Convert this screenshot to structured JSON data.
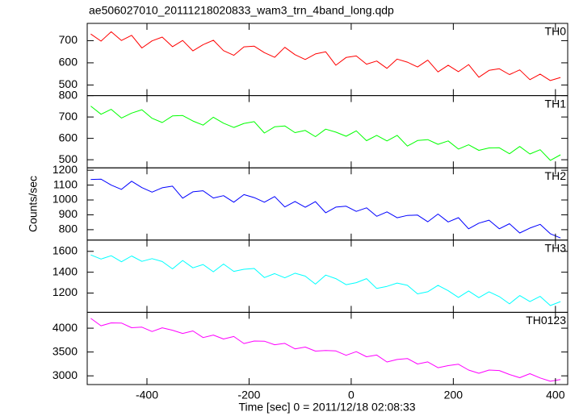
{
  "chart_data": {
    "type": "line",
    "title": "ae506027010_20111218020833_wam3_trn_4band_long.qdp",
    "x_label": "Time [sec] 0 = 2011/12/18 02:08:33",
    "y_label": "Counts/sec",
    "x": [
      -510,
      -490,
      -470,
      -450,
      -430,
      -410,
      -390,
      -370,
      -350,
      -330,
      -310,
      -290,
      -270,
      -250,
      -230,
      -210,
      -190,
      -170,
      -150,
      -130,
      -110,
      -90,
      -70,
      -50,
      -30,
      -10,
      10,
      30,
      50,
      70,
      90,
      110,
      130,
      150,
      170,
      190,
      210,
      230,
      250,
      270,
      290,
      310,
      330,
      350,
      370,
      390,
      410
    ],
    "xlim": [
      -517,
      424
    ],
    "xticks": [
      -400,
      -200,
      0,
      200,
      400
    ],
    "series": [
      {
        "name": "TH0",
        "color": "#ff0000",
        "ylim": [
          452,
          778
        ],
        "yticks": [
          500,
          600,
          700
        ],
        "values": [
          730,
          698,
          740,
          701,
          724,
          667,
          699,
          716,
          673,
          701,
          654,
          682,
          702,
          655,
          634,
          672,
          675,
          646,
          625,
          670,
          637,
          615,
          640,
          650,
          589,
          624,
          631,
          594,
          608,
          575,
          617,
          603,
          581,
          612,
          559,
          589,
          560,
          592,
          535,
          566,
          573,
          547,
          568,
          524,
          549,
          520,
          534
        ]
      },
      {
        "name": "TH1",
        "color": "#00ff00",
        "ylim": [
          462,
          800
        ],
        "yticks": [
          500,
          600,
          700,
          800
        ],
        "values": [
          751,
          713,
          736,
          695,
          718,
          734,
          694,
          674,
          705,
          707,
          681,
          662,
          699,
          671,
          651,
          670,
          678,
          625,
          654,
          658,
          627,
          637,
          608,
          643,
          629,
          610,
          635,
          589,
          614,
          588,
          614,
          564,
          590,
          594,
          572,
          588,
          550,
          570,
          544,
          555,
          556,
          528,
          562,
          527,
          547,
          497,
          523
        ]
      },
      {
        "name": "TH2",
        "color": "#0000ff",
        "ylim": [
          730,
          1216
        ],
        "yticks": [
          800,
          900,
          1000,
          1100,
          1200
        ],
        "values": [
          1138,
          1140,
          1100,
          1071,
          1126,
          1083,
          1053,
          1082,
          1093,
          1012,
          1055,
          1062,
          1013,
          1029,
          985,
          1036,
          1016,
          985,
          1023,
          953,
          990,
          951,
          989,
          914,
          952,
          958,
          923,
          947,
          890,
          920,
          880,
          896,
          898,
          853,
          905,
          852,
          881,
          806,
          844,
          864,
          806,
          840,
          778,
          811,
          836,
          773,
          744
        ]
      },
      {
        "name": "TH3",
        "color": "#00ffff",
        "ylim": [
          1015,
          1708
        ],
        "yticks": [
          1200,
          1400,
          1600
        ],
        "values": [
          1566,
          1526,
          1558,
          1500,
          1556,
          1504,
          1530,
          1502,
          1432,
          1512,
          1442,
          1474,
          1404,
          1478,
          1408,
          1428,
          1436,
          1348,
          1386,
          1346,
          1390,
          1362,
          1286,
          1372,
          1338,
          1280,
          1300,
          1338,
          1244,
          1264,
          1296,
          1274,
          1192,
          1212,
          1274,
          1222,
          1158,
          1220,
          1156,
          1212,
          1166,
          1096,
          1176,
          1118,
          1168,
          1080,
          1118
        ]
      },
      {
        "name": "TH0123",
        "color": "#ff00ff",
        "ylim": [
          2817,
          4333
        ],
        "yticks": [
          3000,
          3500,
          4000
        ],
        "values": [
          4206,
          4051,
          4112,
          4108,
          4009,
          4022,
          3931,
          4008,
          3957,
          3889,
          3942,
          3803,
          3856,
          3773,
          3826,
          3678,
          3731,
          3728,
          3653,
          3682,
          3567,
          3603,
          3520,
          3533,
          3522,
          3431,
          3508,
          3400,
          3437,
          3290,
          3343,
          3364,
          3249,
          3293,
          3170,
          3215,
          3244,
          3121,
          3054,
          3122,
          3111,
          3028,
          2961,
          3046,
          2955,
          2887,
          2924
        ]
      }
    ]
  }
}
